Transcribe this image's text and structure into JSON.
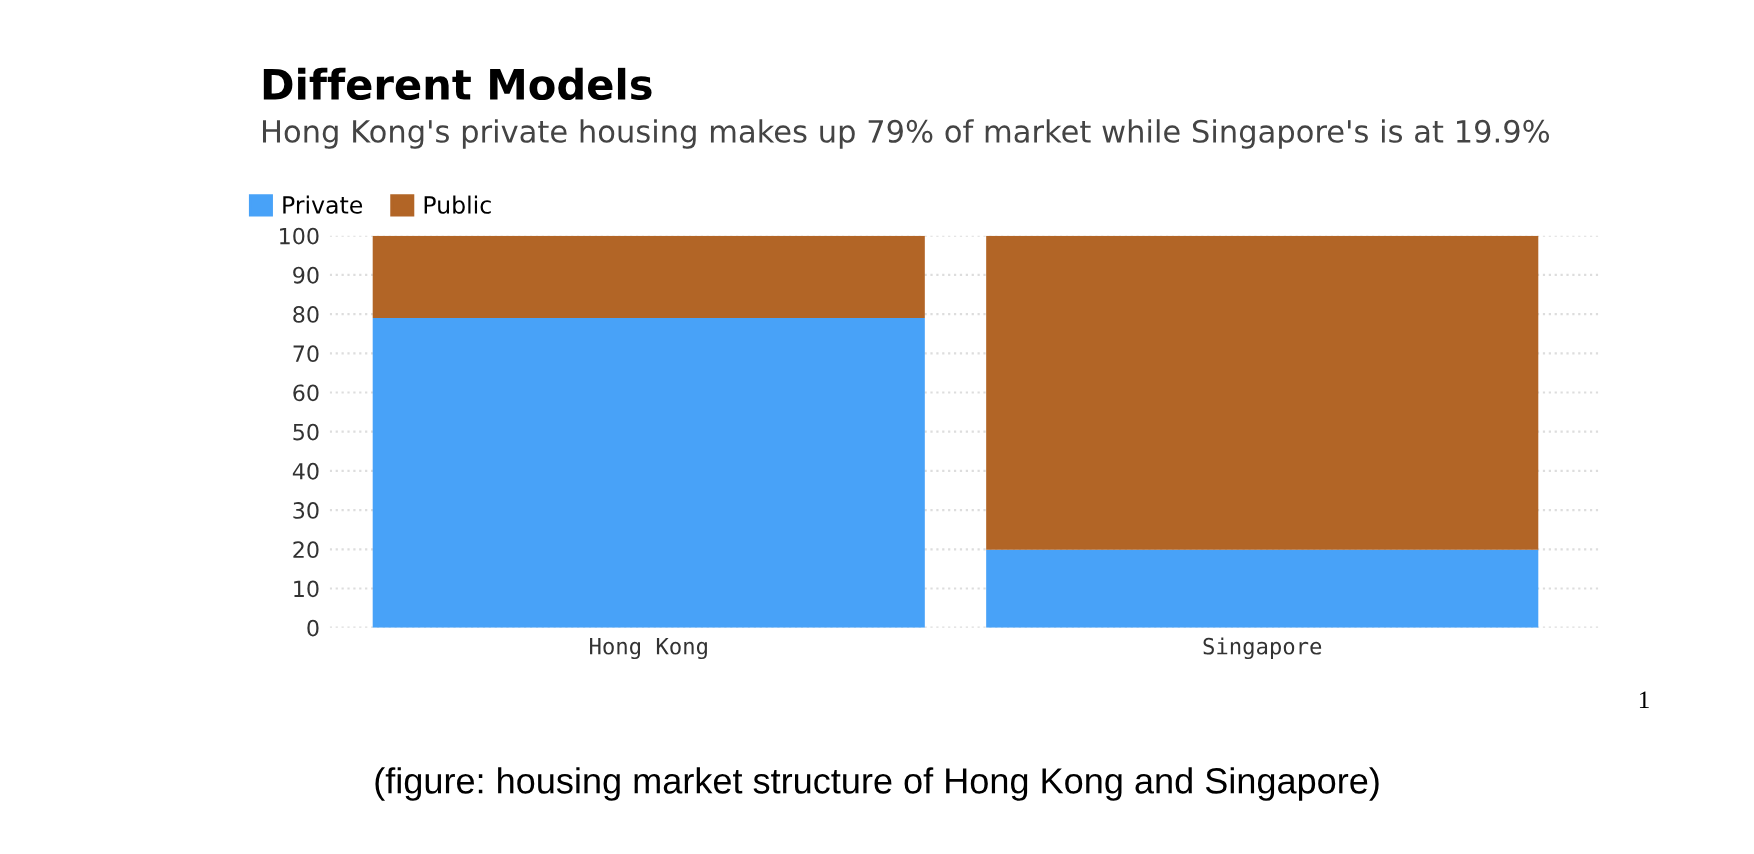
{
  "chart_data": {
    "type": "bar",
    "stacked": true,
    "title": "Different Models",
    "subtitle": "Hong Kong's private housing makes up 79% of market while Singapore's is at 19.9%",
    "categories": [
      "Hong Kong",
      "Singapore"
    ],
    "series": [
      {
        "name": "Private",
        "color": "#48a2f8",
        "values": [
          79,
          19.9
        ]
      },
      {
        "name": "Public",
        "color": "#b26526",
        "values": [
          21,
          80.1
        ]
      }
    ],
    "ylim": [
      0,
      100
    ],
    "yticks": [
      0,
      10,
      20,
      30,
      40,
      50,
      60,
      70,
      80,
      90,
      100
    ],
    "grid": "y",
    "legend": "top left",
    "annotations": [
      "1",
      "(figure: housing market structure of Hong Kong and Singapore)"
    ]
  }
}
